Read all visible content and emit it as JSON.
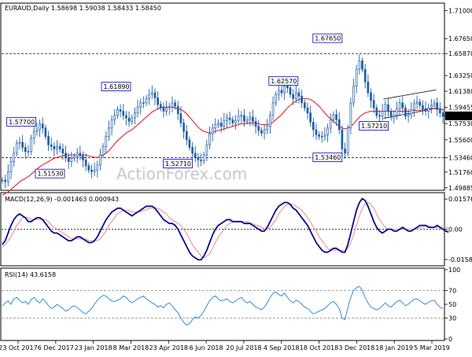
{
  "chart_data": [
    {
      "panel": "price",
      "type": "candlestick",
      "header": "EURAUD,Daily  1.58698 1.59038 1.58433 1.58450",
      "ylim": [
        1.4968,
        1.7178
      ],
      "yticks": [
        "1.71000",
        "1.67650",
        "1.65870",
        "1.63250",
        "1.61380",
        "1.59455",
        "1.58450",
        "1.57530",
        "1.55600",
        "1.53460",
        "1.51760",
        "1.49885"
      ],
      "current_price": "1.58450",
      "hlines": [
        {
          "label": "1.65870",
          "value": 1.6587
        },
        {
          "label": "1.53460",
          "value": 1.5346
        }
      ],
      "annotations": [
        {
          "label": "1.57700",
          "value": 1.577
        },
        {
          "label": "1.51530",
          "value": 1.5153
        },
        {
          "label": "1.61890",
          "value": 1.6189
        },
        {
          "label": "1.52710",
          "value": 1.5271
        },
        {
          "label": "1.62570",
          "value": 1.6257
        },
        {
          "label": "1.53460",
          "value": 1.5346
        },
        {
          "label": "1.67650",
          "value": 1.6765
        },
        {
          "label": "1.57210",
          "value": 1.5721
        }
      ],
      "close_series": [
        1.508,
        1.506,
        1.518,
        1.53,
        1.54,
        1.552,
        1.553,
        1.547,
        1.542,
        1.542,
        1.558,
        1.566,
        1.568,
        1.575,
        1.57,
        1.56,
        1.55,
        1.548,
        1.545,
        1.548,
        1.545,
        1.54,
        1.535,
        1.53,
        1.534,
        1.536,
        1.54,
        1.537,
        1.532,
        1.525,
        1.52,
        1.518,
        1.52,
        1.526,
        1.538,
        1.548,
        1.56,
        1.57,
        1.58,
        1.585,
        1.592,
        1.59,
        1.585,
        1.582,
        1.578,
        1.582,
        1.588,
        1.595,
        1.6,
        1.6,
        1.605,
        1.61,
        1.612,
        1.606,
        1.598,
        1.594,
        1.59,
        1.594,
        1.595,
        1.6,
        1.596,
        1.587,
        1.576,
        1.566,
        1.556,
        1.547,
        1.54,
        1.535,
        1.532,
        1.531,
        1.538,
        1.55,
        1.563,
        1.57,
        1.574,
        1.576,
        1.572,
        1.579,
        1.582,
        1.58,
        1.576,
        1.579,
        1.584,
        1.585,
        1.578,
        1.58,
        1.583,
        1.578,
        1.572,
        1.567,
        1.564,
        1.568,
        1.572,
        1.585,
        1.6,
        1.61,
        1.615,
        1.612,
        1.62,
        1.618,
        1.61,
        1.605,
        1.612,
        1.608,
        1.6,
        1.594,
        1.588,
        1.577,
        1.568,
        1.562,
        1.56,
        1.56,
        1.562,
        1.57,
        1.58,
        1.586,
        1.58,
        1.568,
        1.545,
        1.54,
        1.57,
        1.6,
        1.62,
        1.64,
        1.65,
        1.64,
        1.625,
        1.612,
        1.603,
        1.594,
        1.585,
        1.584,
        1.59,
        1.598,
        1.59,
        1.583,
        1.585,
        1.593,
        1.6,
        1.594,
        1.584,
        1.586,
        1.592,
        1.599,
        1.601,
        1.597,
        1.593,
        1.59,
        1.594,
        1.597,
        1.6,
        1.592,
        1.588,
        1.584
      ],
      "ma_series": [
        1.49,
        1.492,
        1.494,
        1.497,
        1.5,
        1.503,
        1.506,
        1.508,
        1.51,
        1.512,
        1.515,
        1.518,
        1.521,
        1.524,
        1.526,
        1.528,
        1.53,
        1.532,
        1.534,
        1.535,
        1.536,
        1.537,
        1.538,
        1.538,
        1.538,
        1.538,
        1.538,
        1.538,
        1.538,
        1.538,
        1.537,
        1.536,
        1.535,
        1.535,
        1.536,
        1.538,
        1.54,
        1.543,
        1.547,
        1.551,
        1.555,
        1.558,
        1.561,
        1.564,
        1.566,
        1.568,
        1.571,
        1.574,
        1.577,
        1.58,
        1.583,
        1.586,
        1.589,
        1.591,
        1.593,
        1.594,
        1.595,
        1.595,
        1.595,
        1.595,
        1.594,
        1.593,
        1.592,
        1.59,
        1.587,
        1.583,
        1.579,
        1.575,
        1.571,
        1.568,
        1.566,
        1.565,
        1.564,
        1.565,
        1.566,
        1.567,
        1.568,
        1.569,
        1.57,
        1.571,
        1.572,
        1.573,
        1.574,
        1.575,
        1.575,
        1.576,
        1.576,
        1.576,
        1.576,
        1.575,
        1.574,
        1.574,
        1.574,
        1.575,
        1.577,
        1.58,
        1.583,
        1.586,
        1.59,
        1.594,
        1.597,
        1.6,
        1.602,
        1.604,
        1.605,
        1.605,
        1.605,
        1.604,
        1.602,
        1.599,
        1.596,
        1.592,
        1.588,
        1.584,
        1.581,
        1.578,
        1.575,
        1.572,
        1.57,
        1.569,
        1.57,
        1.572,
        1.575,
        1.579,
        1.583,
        1.586,
        1.588,
        1.589,
        1.59,
        1.59,
        1.59,
        1.59,
        1.59,
        1.59,
        1.59,
        1.59,
        1.59,
        1.59,
        1.59,
        1.59,
        1.59,
        1.59,
        1.59,
        1.591,
        1.591,
        1.591,
        1.592,
        1.592,
        1.593,
        1.593,
        1.593,
        1.593,
        1.593,
        1.592
      ]
    },
    {
      "panel": "macd",
      "type": "line",
      "header": "MACD(12,26,9) -0.001463 0.000943",
      "ylim": [
        -0.0183,
        0.0183
      ],
      "yticks": [
        "0.015762",
        "0.00",
        "-0.015834"
      ],
      "macd_series": [
        -0.008,
        -0.006,
        -0.002,
        0.002,
        0.005,
        0.007,
        0.008,
        0.007,
        0.006,
        0.004,
        0.004,
        0.005,
        0.006,
        0.006,
        0.005,
        0.003,
        0.001,
        -0.001,
        -0.002,
        -0.002,
        -0.003,
        -0.004,
        -0.005,
        -0.006,
        -0.006,
        -0.005,
        -0.004,
        -0.004,
        -0.005,
        -0.006,
        -0.007,
        -0.007,
        -0.006,
        -0.004,
        -0.001,
        0.002,
        0.005,
        0.007,
        0.009,
        0.01,
        0.011,
        0.011,
        0.01,
        0.009,
        0.008,
        0.007,
        0.008,
        0.009,
        0.01,
        0.011,
        0.012,
        0.012,
        0.012,
        0.011,
        0.009,
        0.007,
        0.005,
        0.004,
        0.003,
        0.003,
        0.002,
        0.0,
        -0.003,
        -0.006,
        -0.009,
        -0.012,
        -0.014,
        -0.015,
        -0.016,
        -0.016,
        -0.014,
        -0.011,
        -0.007,
        -0.003,
        0.0,
        0.002,
        0.003,
        0.004,
        0.005,
        0.005,
        0.004,
        0.004,
        0.004,
        0.004,
        0.003,
        0.003,
        0.003,
        0.002,
        0.001,
        0.0,
        -0.001,
        -0.001,
        0.001,
        0.004,
        0.007,
        0.01,
        0.012,
        0.013,
        0.014,
        0.014,
        0.013,
        0.011,
        0.01,
        0.008,
        0.006,
        0.004,
        0.002,
        -0.001,
        -0.004,
        -0.007,
        -0.009,
        -0.011,
        -0.012,
        -0.012,
        -0.011,
        -0.01,
        -0.01,
        -0.011,
        -0.012,
        -0.012,
        -0.008,
        -0.002,
        0.004,
        0.01,
        0.014,
        0.016,
        0.015,
        0.012,
        0.008,
        0.004,
        0.001,
        -0.001,
        -0.002,
        -0.001,
        0.0,
        0.0,
        -0.001,
        -0.001,
        0.0,
        0.001,
        0.0,
        -0.001,
        -0.001,
        0.0,
        0.001,
        0.002,
        0.002,
        0.002,
        0.001,
        0.001,
        0.001,
        0.002,
        0.001,
        0.0,
        -0.001,
        -0.0015
      ],
      "signal_series": [
        -0.009,
        -0.008,
        -0.006,
        -0.004,
        -0.001,
        0.002,
        0.004,
        0.006,
        0.006,
        0.006,
        0.005,
        0.005,
        0.005,
        0.005,
        0.005,
        0.005,
        0.004,
        0.002,
        0.001,
        0.0,
        -0.001,
        -0.002,
        -0.003,
        -0.004,
        -0.005,
        -0.005,
        -0.005,
        -0.005,
        -0.005,
        -0.005,
        -0.006,
        -0.006,
        -0.006,
        -0.006,
        -0.005,
        -0.003,
        -0.001,
        0.002,
        0.004,
        0.006,
        0.008,
        0.009,
        0.01,
        0.01,
        0.01,
        0.009,
        0.009,
        0.009,
        0.009,
        0.01,
        0.01,
        0.011,
        0.011,
        0.011,
        0.011,
        0.01,
        0.009,
        0.008,
        0.006,
        0.005,
        0.004,
        0.003,
        0.002,
        0.0,
        -0.002,
        -0.005,
        -0.008,
        -0.01,
        -0.012,
        -0.014,
        -0.015,
        -0.014,
        -0.013,
        -0.01,
        -0.007,
        -0.004,
        -0.002,
        0.0,
        0.002,
        0.003,
        0.004,
        0.004,
        0.004,
        0.004,
        0.004,
        0.004,
        0.003,
        0.003,
        0.002,
        0.002,
        0.001,
        0.0,
        0.0,
        0.001,
        0.003,
        0.005,
        0.008,
        0.01,
        0.012,
        0.013,
        0.013,
        0.013,
        0.012,
        0.011,
        0.01,
        0.008,
        0.006,
        0.004,
        0.001,
        -0.001,
        -0.004,
        -0.006,
        -0.008,
        -0.01,
        -0.011,
        -0.011,
        -0.011,
        -0.011,
        -0.011,
        -0.011,
        -0.01,
        -0.007,
        -0.003,
        0.002,
        0.007,
        0.011,
        0.013,
        0.014,
        0.013,
        0.011,
        0.008,
        0.005,
        0.003,
        0.001,
        0.0,
        0.0,
        0.0,
        0.0,
        0.0,
        0.0,
        0.0,
        0.0,
        0.0,
        0.0,
        0.0,
        0.001,
        0.001,
        0.002,
        0.002,
        0.001,
        0.001,
        0.001,
        0.001,
        0.001,
        0.001,
        0.0009
      ]
    },
    {
      "panel": "rsi",
      "type": "line",
      "header": "RSI(14) 43.6158",
      "ylim": [
        0,
        100
      ],
      "yticks": [
        "100",
        "70",
        "50",
        "30",
        "0"
      ],
      "levels": [
        70,
        30
      ],
      "rsi_series": [
        48,
        52,
        55,
        50,
        58,
        60,
        56,
        52,
        54,
        50,
        57,
        60,
        55,
        52,
        58,
        54,
        48,
        44,
        46,
        50,
        47,
        44,
        40,
        42,
        46,
        48,
        45,
        42,
        38,
        36,
        40,
        44,
        50,
        56,
        60,
        63,
        62,
        58,
        55,
        54,
        56,
        58,
        62,
        60,
        55,
        52,
        55,
        58,
        60,
        62,
        58,
        55,
        52,
        50,
        46,
        48,
        45,
        50,
        52,
        48,
        42,
        38,
        30,
        24,
        20,
        22,
        28,
        32,
        30,
        34,
        40,
        48,
        55,
        60,
        62,
        58,
        55,
        56,
        58,
        54,
        52,
        55,
        58,
        60,
        55,
        52,
        54,
        50,
        46,
        44,
        42,
        46,
        52,
        60,
        66,
        68,
        64,
        62,
        66,
        60,
        55,
        52,
        56,
        54,
        50,
        46,
        44,
        40,
        36,
        38,
        40,
        42,
        44,
        48,
        52,
        54,
        50,
        44,
        30,
        28,
        45,
        60,
        70,
        74,
        76,
        70,
        60,
        52,
        46,
        44,
        42,
        44,
        48,
        52,
        48,
        46,
        50,
        54,
        56,
        52,
        48,
        50,
        54,
        57,
        58,
        55,
        52,
        50,
        53,
        55,
        56,
        50,
        46,
        43.6
      ],
      "x": [
        "23 Oct 2017",
        "6 Dec 2017",
        "23 Jan 2018",
        "8 Mar 2018",
        "23 Apr 2018",
        "6 Jun 2018",
        "20 Jul 2018",
        "4 Sep 2018",
        "18 Oct 2018",
        "3 Dec 2018",
        "18 Jan 2019",
        "5 Mar 2019"
      ]
    }
  ],
  "watermark": "ActionForex.com",
  "colors": {
    "candle": "#1f5faa",
    "ma": "#e8202a",
    "macd": "#0a0a8c",
    "signal": "#ee8a8a",
    "rsi": "#2f8ee0",
    "grid": "#b4b4b4",
    "label_border": "#0000cc"
  }
}
